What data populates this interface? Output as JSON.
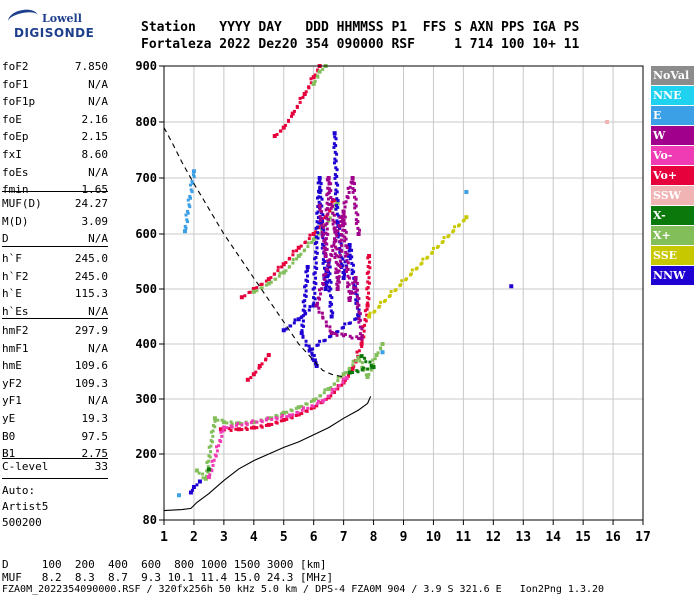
{
  "logo": {
    "line1": "Lowell",
    "line2": "DIGISONDE"
  },
  "header": {
    "line1": "Station   YYYY DAY   DDD HHMMSS P1  FFS S AXN PPS IGA PS",
    "line2": "Fortaleza 2022 Dez20 354 090000 RSF     1 714 100 10+ 11"
  },
  "params_group1": [
    {
      "label": "foF2",
      "value": "7.850"
    },
    {
      "label": "foF1",
      "value": "N/A"
    },
    {
      "label": "foF1p",
      "value": "N/A"
    },
    {
      "label": "foE",
      "value": "2.16"
    },
    {
      "label": "foEp",
      "value": "2.15"
    },
    {
      "label": "fxI",
      "value": "8.60"
    },
    {
      "label": "foEs",
      "value": "N/A"
    },
    {
      "label": "fmin",
      "value": "1.65"
    }
  ],
  "params_group2": [
    {
      "label": "MUF(D)",
      "value": "24.27"
    },
    {
      "label": "M(D)",
      "value": "3.09"
    },
    {
      "label": "D",
      "value": "N/A"
    }
  ],
  "params_group3": [
    {
      "label": "h`F",
      "value": "245.0"
    },
    {
      "label": "h`F2",
      "value": "245.0"
    },
    {
      "label": "h`E",
      "value": "115.3"
    },
    {
      "label": "h`Es",
      "value": "N/A"
    }
  ],
  "params_group4": [
    {
      "label": "hmF2",
      "value": "297.9"
    },
    {
      "label": "hmF1",
      "value": "N/A"
    },
    {
      "label": "hmE",
      "value": "109.6"
    },
    {
      "label": "yF2",
      "value": "109.3"
    },
    {
      "label": "yF1",
      "value": "N/A"
    },
    {
      "label": "yE",
      "value": "19.3"
    },
    {
      "label": "B0",
      "value": "97.5"
    },
    {
      "label": "B1",
      "value": "2.75"
    }
  ],
  "clevel": {
    "label": "C-level",
    "value": "33"
  },
  "auto": {
    "line1": "Auto:",
    "line2": "Artist5",
    "line3": "500200"
  },
  "legend": [
    {
      "label": "NoVal",
      "color": "#8c8c8c"
    },
    {
      "label": "NNE",
      "color": "#1ed2f0"
    },
    {
      "label": "E",
      "color": "#3ca0e6"
    },
    {
      "label": "W",
      "color": "#a0008c"
    },
    {
      "label": "Vo-",
      "color": "#f03cb4"
    },
    {
      "label": "Vo+",
      "color": "#e6003c"
    },
    {
      "label": "SSW",
      "color": "#f0b4b4"
    },
    {
      "label": "X-",
      "color": "#0a780a"
    },
    {
      "label": "X+",
      "color": "#82be5a"
    },
    {
      "label": "SSE",
      "color": "#c8c800"
    },
    {
      "label": "NNW",
      "color": "#1e00d2"
    }
  ],
  "footer": {
    "line1": "D     100  200  400  600  800 1000 1500 3000 [km]",
    "line2": "MUF   8.2  8.3  8.7  9.3 10.1 11.4 15.0 24.3 [MHz]",
    "line3": "FZA0M_2022354090000.RSF / 320fx256h 50 kHz 5.0 km / DPS-4 FZA0M 904 / 3.9 S 321.6 E   Ion2Png 1.3.20"
  },
  "chart_data": {
    "type": "scatter",
    "title": "",
    "xlabel": "",
    "ylabel": "",
    "xlim": [
      1,
      17
    ],
    "ylim": [
      80,
      900
    ],
    "xticks": [
      1,
      2,
      3,
      4,
      5,
      6,
      7,
      8,
      9,
      10,
      11,
      12,
      13,
      14,
      15,
      16,
      17
    ],
    "yticks": [
      80,
      200,
      300,
      400,
      500,
      600,
      700,
      800,
      900
    ],
    "grid": true,
    "series": [
      {
        "color": "#e6003c",
        "points": [
          [
            2.9,
            245
          ],
          [
            3.5,
            245
          ],
          [
            4.0,
            248
          ],
          [
            4.5,
            253
          ],
          [
            5.0,
            262
          ],
          [
            5.5,
            272
          ],
          [
            6.0,
            285
          ],
          [
            6.5,
            303
          ],
          [
            7.0,
            330
          ],
          [
            7.3,
            355
          ],
          [
            7.6,
            400
          ],
          [
            7.8,
            470
          ],
          [
            7.85,
            560
          ]
        ]
      },
      {
        "color": "#82be5a",
        "points": [
          [
            2.1,
            170
          ],
          [
            2.4,
            155
          ],
          [
            2.7,
            265
          ],
          [
            3.0,
            258
          ],
          [
            3.5,
            256
          ],
          [
            4.0,
            258
          ],
          [
            4.5,
            265
          ],
          [
            5.0,
            275
          ],
          [
            5.5,
            285
          ],
          [
            6.0,
            298
          ],
          [
            6.5,
            318
          ],
          [
            7.0,
            345
          ],
          [
            7.5,
            375
          ],
          [
            7.8,
            340
          ],
          [
            8.1,
            380
          ],
          [
            8.3,
            400
          ]
        ]
      },
      {
        "color": "#e6003c",
        "points": [
          [
            3.6,
            485
          ],
          [
            4.0,
            500
          ],
          [
            4.5,
            518
          ],
          [
            5.0,
            545
          ],
          [
            5.5,
            575
          ],
          [
            6.0,
            600
          ],
          [
            6.4,
            630
          ],
          [
            6.7,
            660
          ]
        ]
      },
      {
        "color": "#82be5a",
        "points": [
          [
            4.0,
            495
          ],
          [
            4.5,
            510
          ],
          [
            5.0,
            530
          ],
          [
            5.5,
            560
          ],
          [
            6.0,
            590
          ],
          [
            6.5,
            625
          ],
          [
            6.8,
            655
          ]
        ]
      },
      {
        "color": "#e6003c",
        "points": [
          [
            3.8,
            335
          ],
          [
            4.0,
            345
          ],
          [
            4.2,
            360
          ],
          [
            4.5,
            380
          ]
        ]
      },
      {
        "color": "#e6003c",
        "points": [
          [
            4.7,
            775
          ],
          [
            5.0,
            790
          ],
          [
            5.3,
            815
          ],
          [
            5.7,
            850
          ],
          [
            6.0,
            880
          ],
          [
            6.2,
            900
          ]
        ]
      },
      {
        "color": "#82be5a",
        "points": [
          [
            6.0,
            868
          ],
          [
            6.2,
            890
          ],
          [
            6.4,
            900
          ]
        ]
      },
      {
        "color": "#1e00d2",
        "points": [
          [
            1.9,
            130
          ],
          [
            2.0,
            140
          ],
          [
            2.2,
            150
          ],
          [
            5.0,
            425
          ],
          [
            5.5,
            445
          ],
          [
            6.0,
            470
          ],
          [
            6.2,
            700
          ],
          [
            6.3,
            600
          ],
          [
            6.4,
            500
          ],
          [
            6.5,
            550
          ],
          [
            6.6,
            450
          ],
          [
            6.7,
            780
          ],
          [
            6.8,
            620
          ],
          [
            7.0,
            520
          ],
          [
            7.2,
            580
          ],
          [
            7.5,
            450
          ],
          [
            5.9,
            390
          ],
          [
            6.1,
            360
          ],
          [
            5.6,
            420
          ],
          [
            5.8,
            540
          ]
        ]
      },
      {
        "color": "#a0008c",
        "points": [
          [
            6.2,
            650
          ],
          [
            6.4,
            560
          ],
          [
            6.5,
            700
          ],
          [
            6.7,
            610
          ],
          [
            6.8,
            500
          ],
          [
            7.0,
            640
          ],
          [
            7.2,
            480
          ],
          [
            7.4,
            520
          ],
          [
            7.6,
            410
          ],
          [
            6.6,
            420
          ],
          [
            6.1,
            470
          ],
          [
            7.3,
            700
          ],
          [
            7.5,
            600
          ]
        ]
      },
      {
        "color": "#3ca0e6",
        "points": [
          [
            1.5,
            125
          ],
          [
            11.1,
            675
          ],
          [
            2.0,
            712
          ],
          [
            1.7,
            605
          ],
          [
            8.3,
            385
          ]
        ]
      },
      {
        "color": "#c8c800",
        "points": [
          [
            11.1,
            630
          ],
          [
            7.85,
            450
          ]
        ]
      },
      {
        "color": "#1e00d2",
        "points": [
          [
            12.6,
            505
          ]
        ]
      },
      {
        "color": "#f0b4b4",
        "points": [
          [
            15.8,
            800
          ]
        ]
      },
      {
        "color": "#f03cb4",
        "points": [
          [
            2.5,
            158
          ],
          [
            3.0,
            248
          ],
          [
            5.2,
            270
          ],
          [
            6.3,
            296
          ],
          [
            7.1,
            338
          ]
        ]
      },
      {
        "color": "#0a780a",
        "points": [
          [
            2.5,
            172
          ],
          [
            7.2,
            348
          ],
          [
            8.0,
            358
          ],
          [
            7.6,
            378
          ]
        ]
      }
    ],
    "curves": [
      {
        "style": "solid",
        "points": [
          [
            1,
            97
          ],
          [
            1.6,
            99
          ],
          [
            1.9,
            101
          ],
          [
            2.1,
            112
          ],
          [
            2.5,
            128
          ],
          [
            3.0,
            152
          ],
          [
            3.5,
            173
          ],
          [
            4.0,
            188
          ],
          [
            4.5,
            200
          ],
          [
            5.0,
            212
          ],
          [
            5.5,
            222
          ],
          [
            6.0,
            235
          ],
          [
            6.5,
            248
          ],
          [
            7.0,
            265
          ],
          [
            7.5,
            280
          ],
          [
            7.8,
            292
          ],
          [
            7.9,
            305
          ]
        ]
      },
      {
        "style": "dashed",
        "points": [
          [
            1.0,
            790
          ],
          [
            1.3,
            760
          ],
          [
            1.6,
            728
          ],
          [
            2.0,
            690
          ],
          [
            2.5,
            645
          ],
          [
            3.0,
            600
          ],
          [
            3.5,
            560
          ],
          [
            4.0,
            520
          ],
          [
            4.5,
            480
          ],
          [
            5.0,
            440
          ],
          [
            5.5,
            400
          ],
          [
            6.0,
            370
          ],
          [
            6.3,
            352
          ],
          [
            6.6,
            345
          ],
          [
            7.0,
            340
          ]
        ]
      }
    ]
  }
}
